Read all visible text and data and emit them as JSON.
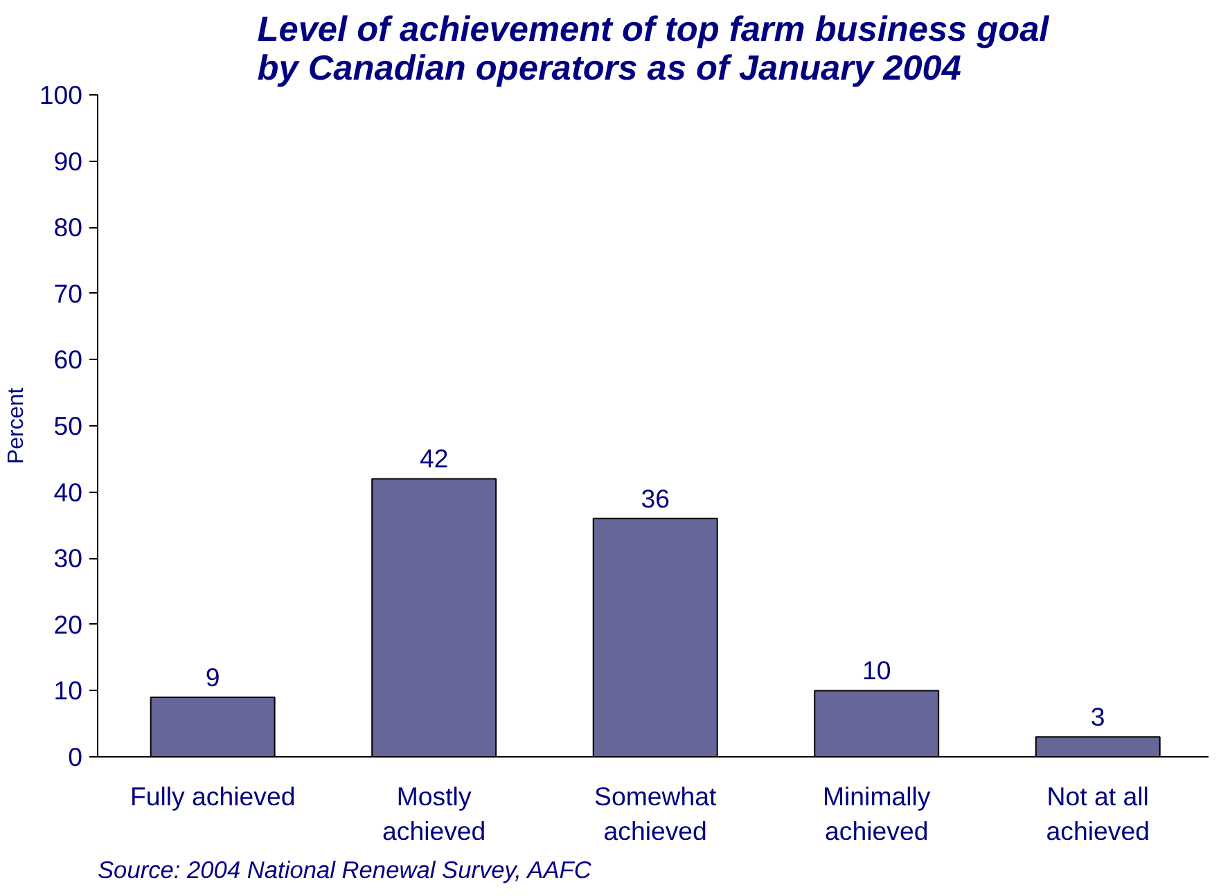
{
  "chart_data": {
    "type": "bar",
    "title": "Level of achievement of top farm business goal\nby Canadian operators as of January 2004",
    "ylabel": "Percent",
    "categories": [
      "Fully achieved",
      "Mostly\nachieved",
      "Somewhat\nachieved",
      "Minimally\nachieved",
      "Not at all\nachieved"
    ],
    "values": [
      9,
      42,
      36,
      10,
      3
    ],
    "color": "#666699",
    "data_labels": true,
    "grid": false,
    "ylim": [
      0,
      100
    ],
    "yticks": [
      0,
      10,
      20,
      30,
      40,
      50,
      60,
      70,
      80,
      90,
      100
    ],
    "annotations": [
      "Source: 2004 National Renewal Survey, AAFC"
    ]
  }
}
